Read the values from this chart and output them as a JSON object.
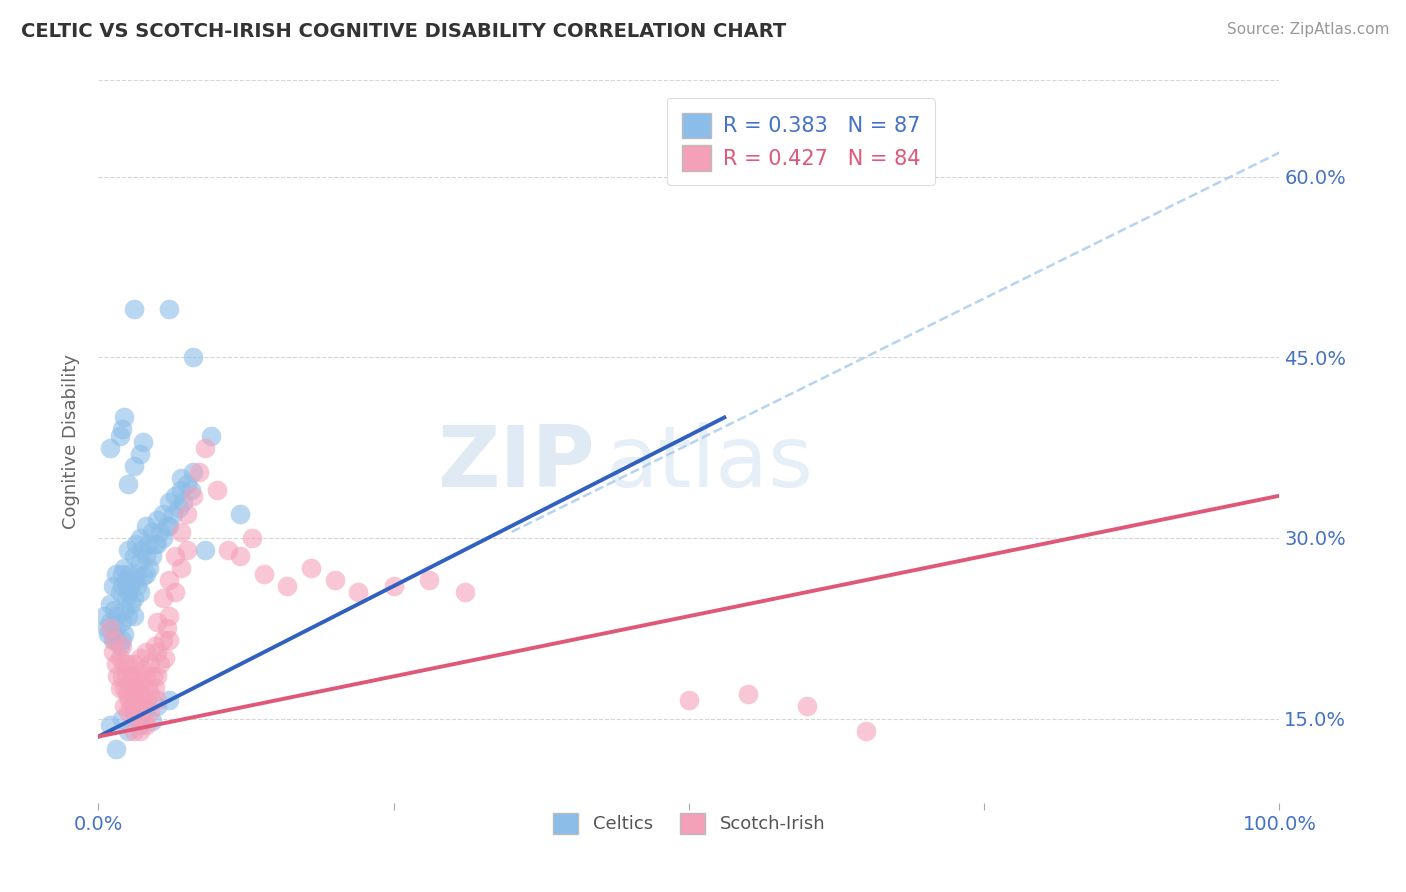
{
  "title": "CELTIC VS SCOTCH-IRISH COGNITIVE DISABILITY CORRELATION CHART",
  "source": "Source: ZipAtlas.com",
  "ylabel": "Cognitive Disability",
  "xlim": [
    0.0,
    1.0
  ],
  "ylim": [
    0.08,
    0.68
  ],
  "yticks": [
    0.15,
    0.3,
    0.45,
    0.6
  ],
  "ytick_labels": [
    "15.0%",
    "30.0%",
    "45.0%",
    "60.0%"
  ],
  "celtic_R": 0.383,
  "celtic_N": 87,
  "scotch_R": 0.427,
  "scotch_N": 84,
  "celtic_color": "#8bbde8",
  "scotch_color": "#f4a0b8",
  "celtic_line_color": "#3060c0",
  "scotch_line_color": "#e05878",
  "dashed_line_color": "#aaccee",
  "background_color": "#ffffff",
  "grid_color": "#cccccc",
  "title_color": "#333333",
  "axis_label_color": "#4472c4",
  "legend_R_color": "#4472c4",
  "celtic_scatter": [
    [
      0.005,
      0.235
    ],
    [
      0.007,
      0.225
    ],
    [
      0.008,
      0.22
    ],
    [
      0.01,
      0.245
    ],
    [
      0.01,
      0.23
    ],
    [
      0.012,
      0.26
    ],
    [
      0.012,
      0.215
    ],
    [
      0.013,
      0.24
    ],
    [
      0.014,
      0.218
    ],
    [
      0.015,
      0.27
    ],
    [
      0.015,
      0.225
    ],
    [
      0.016,
      0.235
    ],
    [
      0.018,
      0.21
    ],
    [
      0.018,
      0.255
    ],
    [
      0.02,
      0.27
    ],
    [
      0.02,
      0.26
    ],
    [
      0.02,
      0.23
    ],
    [
      0.02,
      0.215
    ],
    [
      0.022,
      0.275
    ],
    [
      0.022,
      0.24
    ],
    [
      0.022,
      0.22
    ],
    [
      0.023,
      0.265
    ],
    [
      0.023,
      0.25
    ],
    [
      0.025,
      0.29
    ],
    [
      0.025,
      0.255
    ],
    [
      0.025,
      0.235
    ],
    [
      0.026,
      0.27
    ],
    [
      0.027,
      0.258
    ],
    [
      0.028,
      0.245
    ],
    [
      0.03,
      0.285
    ],
    [
      0.03,
      0.265
    ],
    [
      0.03,
      0.25
    ],
    [
      0.03,
      0.235
    ],
    [
      0.032,
      0.295
    ],
    [
      0.032,
      0.27
    ],
    [
      0.033,
      0.26
    ],
    [
      0.035,
      0.3
    ],
    [
      0.035,
      0.28
    ],
    [
      0.035,
      0.255
    ],
    [
      0.037,
      0.29
    ],
    [
      0.038,
      0.268
    ],
    [
      0.04,
      0.31
    ],
    [
      0.04,
      0.285
    ],
    [
      0.04,
      0.27
    ],
    [
      0.042,
      0.295
    ],
    [
      0.043,
      0.275
    ],
    [
      0.045,
      0.305
    ],
    [
      0.045,
      0.285
    ],
    [
      0.048,
      0.295
    ],
    [
      0.05,
      0.315
    ],
    [
      0.05,
      0.295
    ],
    [
      0.052,
      0.305
    ],
    [
      0.055,
      0.32
    ],
    [
      0.055,
      0.3
    ],
    [
      0.058,
      0.31
    ],
    [
      0.06,
      0.33
    ],
    [
      0.06,
      0.31
    ],
    [
      0.063,
      0.32
    ],
    [
      0.065,
      0.335
    ],
    [
      0.068,
      0.325
    ],
    [
      0.07,
      0.34
    ],
    [
      0.072,
      0.33
    ],
    [
      0.075,
      0.345
    ],
    [
      0.078,
      0.34
    ],
    [
      0.08,
      0.355
    ],
    [
      0.01,
      0.145
    ],
    [
      0.015,
      0.125
    ],
    [
      0.02,
      0.15
    ],
    [
      0.025,
      0.14
    ],
    [
      0.03,
      0.155
    ],
    [
      0.035,
      0.145
    ],
    [
      0.04,
      0.158
    ],
    [
      0.045,
      0.148
    ],
    [
      0.05,
      0.16
    ],
    [
      0.06,
      0.165
    ],
    [
      0.03,
      0.49
    ],
    [
      0.07,
      0.35
    ],
    [
      0.06,
      0.49
    ],
    [
      0.08,
      0.45
    ],
    [
      0.12,
      0.32
    ],
    [
      0.09,
      0.29
    ],
    [
      0.095,
      0.385
    ],
    [
      0.01,
      0.375
    ],
    [
      0.018,
      0.385
    ],
    [
      0.02,
      0.39
    ],
    [
      0.022,
      0.4
    ],
    [
      0.025,
      0.345
    ],
    [
      0.03,
      0.36
    ],
    [
      0.035,
      0.37
    ],
    [
      0.038,
      0.38
    ]
  ],
  "scotch_scatter": [
    [
      0.01,
      0.225
    ],
    [
      0.012,
      0.205
    ],
    [
      0.013,
      0.215
    ],
    [
      0.015,
      0.195
    ],
    [
      0.016,
      0.185
    ],
    [
      0.018,
      0.175
    ],
    [
      0.018,
      0.2
    ],
    [
      0.02,
      0.21
    ],
    [
      0.02,
      0.185
    ],
    [
      0.022,
      0.195
    ],
    [
      0.022,
      0.175
    ],
    [
      0.022,
      0.16
    ],
    [
      0.023,
      0.185
    ],
    [
      0.024,
      0.17
    ],
    [
      0.025,
      0.195
    ],
    [
      0.025,
      0.175
    ],
    [
      0.025,
      0.155
    ],
    [
      0.026,
      0.165
    ],
    [
      0.028,
      0.185
    ],
    [
      0.028,
      0.16
    ],
    [
      0.03,
      0.195
    ],
    [
      0.03,
      0.175
    ],
    [
      0.03,
      0.155
    ],
    [
      0.03,
      0.14
    ],
    [
      0.032,
      0.185
    ],
    [
      0.032,
      0.165
    ],
    [
      0.033,
      0.175
    ],
    [
      0.034,
      0.155
    ],
    [
      0.035,
      0.2
    ],
    [
      0.035,
      0.18
    ],
    [
      0.035,
      0.16
    ],
    [
      0.035,
      0.14
    ],
    [
      0.036,
      0.17
    ],
    [
      0.038,
      0.19
    ],
    [
      0.038,
      0.165
    ],
    [
      0.038,
      0.148
    ],
    [
      0.04,
      0.205
    ],
    [
      0.04,
      0.185
    ],
    [
      0.04,
      0.165
    ],
    [
      0.04,
      0.145
    ],
    [
      0.042,
      0.175
    ],
    [
      0.044,
      0.195
    ],
    [
      0.044,
      0.17
    ],
    [
      0.044,
      0.155
    ],
    [
      0.046,
      0.185
    ],
    [
      0.048,
      0.21
    ],
    [
      0.048,
      0.175
    ],
    [
      0.05,
      0.23
    ],
    [
      0.05,
      0.205
    ],
    [
      0.05,
      0.185
    ],
    [
      0.05,
      0.165
    ],
    [
      0.052,
      0.195
    ],
    [
      0.055,
      0.25
    ],
    [
      0.055,
      0.215
    ],
    [
      0.056,
      0.2
    ],
    [
      0.058,
      0.225
    ],
    [
      0.06,
      0.265
    ],
    [
      0.06,
      0.235
    ],
    [
      0.06,
      0.215
    ],
    [
      0.065,
      0.285
    ],
    [
      0.065,
      0.255
    ],
    [
      0.07,
      0.305
    ],
    [
      0.07,
      0.275
    ],
    [
      0.075,
      0.32
    ],
    [
      0.075,
      0.29
    ],
    [
      0.08,
      0.335
    ],
    [
      0.085,
      0.355
    ],
    [
      0.09,
      0.375
    ],
    [
      0.1,
      0.34
    ],
    [
      0.11,
      0.29
    ],
    [
      0.12,
      0.285
    ],
    [
      0.13,
      0.3
    ],
    [
      0.14,
      0.27
    ],
    [
      0.16,
      0.26
    ],
    [
      0.18,
      0.275
    ],
    [
      0.2,
      0.265
    ],
    [
      0.22,
      0.255
    ],
    [
      0.25,
      0.26
    ],
    [
      0.28,
      0.265
    ],
    [
      0.31,
      0.255
    ],
    [
      0.5,
      0.165
    ],
    [
      0.55,
      0.17
    ],
    [
      0.6,
      0.16
    ],
    [
      0.65,
      0.14
    ]
  ],
  "celtic_line": [
    0.0,
    0.135,
    0.53,
    0.4
  ],
  "scotch_line": [
    0.0,
    0.135,
    1.0,
    0.335
  ],
  "dashed_line": [
    0.35,
    0.305,
    1.0,
    0.62
  ]
}
